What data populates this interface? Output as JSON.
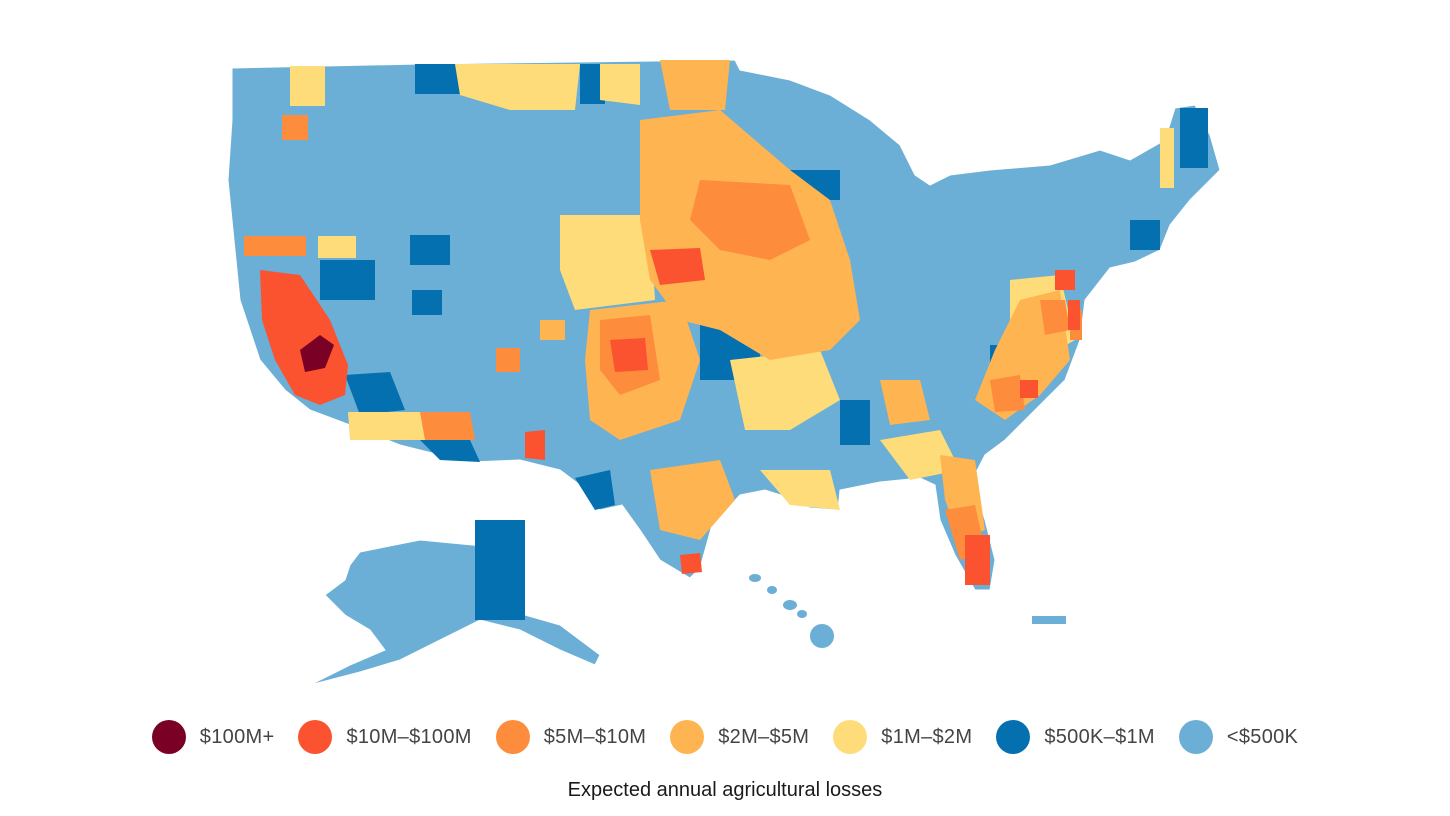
{
  "map": {
    "regions": [
      "contiguous-us",
      "alaska",
      "hawaii",
      "puerto-rico"
    ],
    "county_borders": "#ffffff"
  },
  "legend": {
    "items": [
      {
        "label": "$100M+",
        "color": "#7a0026"
      },
      {
        "label": "$10M–$100M",
        "color": "#fb5230"
      },
      {
        "label": "$5M–$10M",
        "color": "#fd8c3c"
      },
      {
        "label": "$2M–$5M",
        "color": "#feb450"
      },
      {
        "label": "$1M–$2M",
        "color": "#fedc7a"
      },
      {
        "label": "$500K–$1M",
        "color": "#0570b0"
      },
      {
        "label": "<$500K",
        "color": "#6baed6"
      }
    ]
  },
  "caption": "Expected annual agricultural losses"
}
